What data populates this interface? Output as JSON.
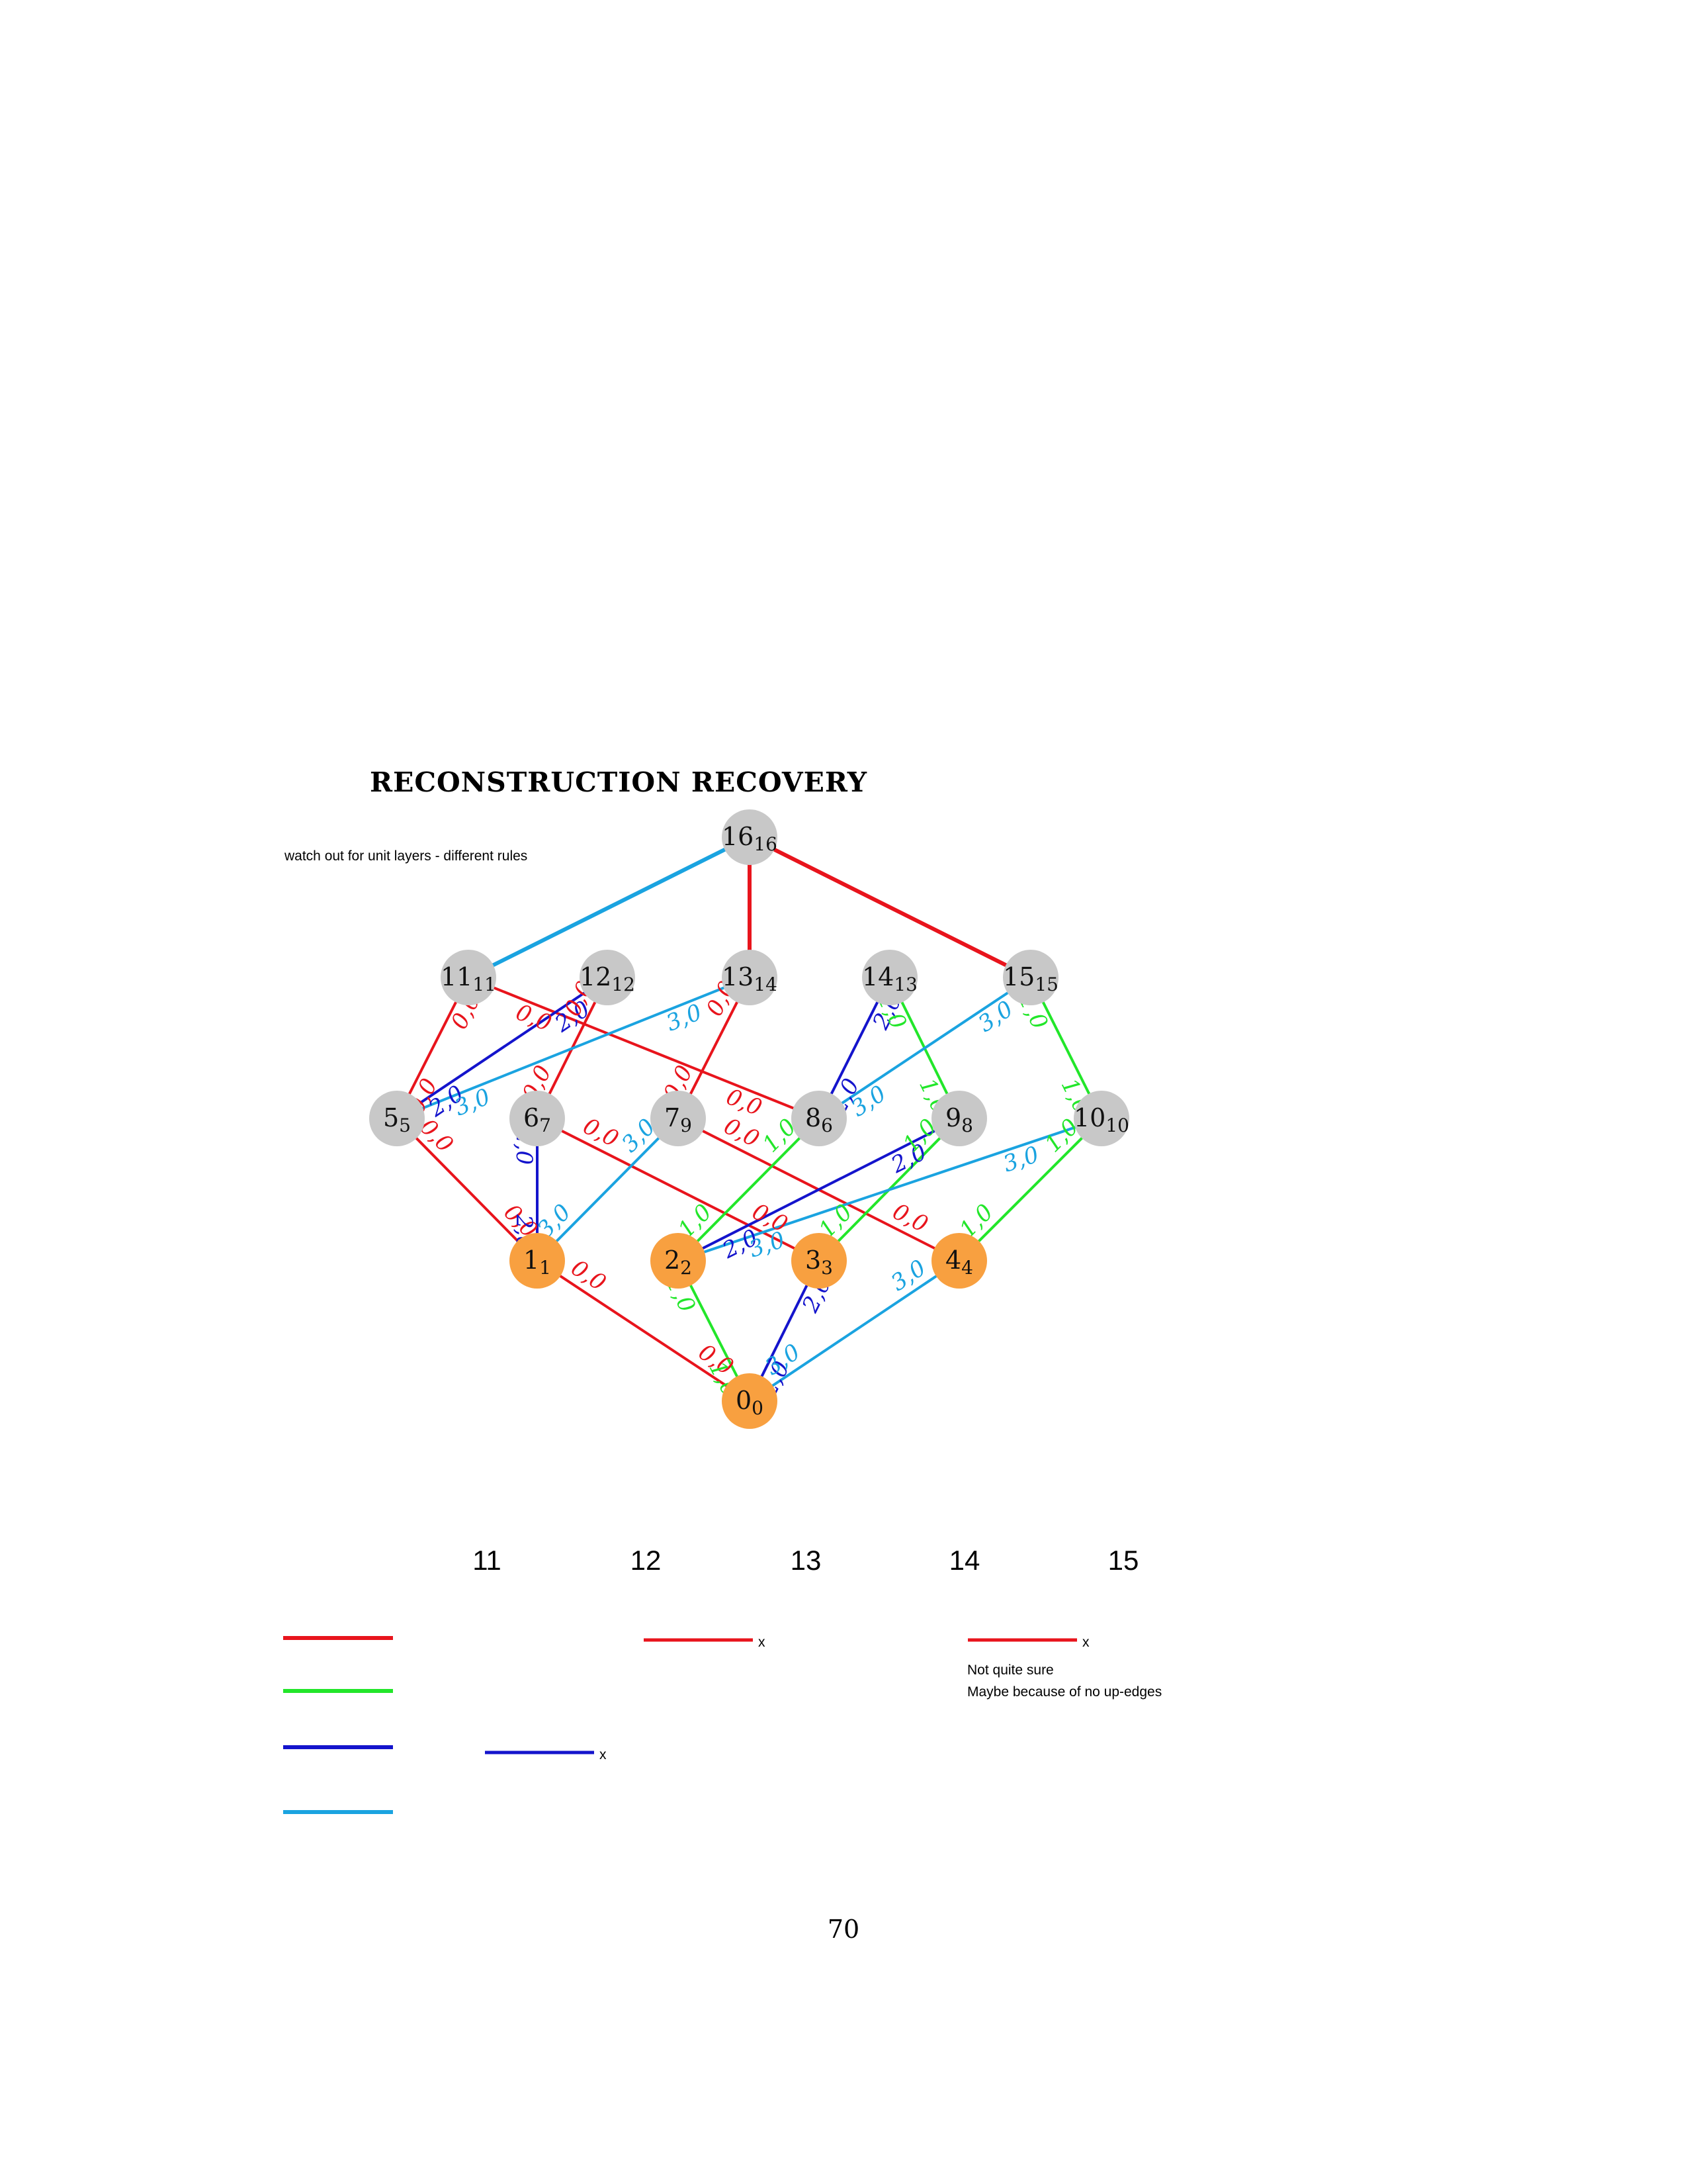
{
  "title": "RECONSTRUCTION RECOVERY",
  "note": "watch out for unit layers - different rules",
  "page_number": "70",
  "colors": {
    "red": "#e8141c",
    "green": "#22e62a",
    "blue": "#1414cc",
    "cyan": "#1aa3e0",
    "node_gray": "#c8c8c8",
    "node_orange": "#f8a040"
  },
  "nodes": [
    {
      "id": "16",
      "label": "16",
      "sub": "16",
      "kind": "gray"
    },
    {
      "id": "11",
      "label": "11",
      "sub": "11",
      "kind": "gray"
    },
    {
      "id": "12",
      "label": "12",
      "sub": "12",
      "kind": "gray"
    },
    {
      "id": "13",
      "label": "13",
      "sub": "14",
      "kind": "gray"
    },
    {
      "id": "14",
      "label": "14",
      "sub": "13",
      "kind": "gray"
    },
    {
      "id": "15",
      "label": "15",
      "sub": "15",
      "kind": "gray"
    },
    {
      "id": "5",
      "label": "5",
      "sub": "5",
      "kind": "gray"
    },
    {
      "id": "6",
      "label": "6",
      "sub": "7",
      "kind": "gray"
    },
    {
      "id": "7",
      "label": "7",
      "sub": "9",
      "kind": "gray"
    },
    {
      "id": "8",
      "label": "8",
      "sub": "6",
      "kind": "gray"
    },
    {
      "id": "9",
      "label": "9",
      "sub": "8",
      "kind": "gray"
    },
    {
      "id": "10",
      "label": "10",
      "sub": "10",
      "kind": "gray"
    },
    {
      "id": "1",
      "label": "1",
      "sub": "1",
      "kind": "orange"
    },
    {
      "id": "2",
      "label": "2",
      "sub": "2",
      "kind": "orange"
    },
    {
      "id": "3",
      "label": "3",
      "sub": "3",
      "kind": "orange"
    },
    {
      "id": "4",
      "label": "4",
      "sub": "4",
      "kind": "orange"
    },
    {
      "id": "0",
      "label": "0",
      "sub": "0",
      "kind": "orange"
    }
  ],
  "edges": [
    {
      "from": "16",
      "to": "11",
      "color": "cyan",
      "labels": []
    },
    {
      "from": "16",
      "to": "13",
      "color": "red",
      "labels": []
    },
    {
      "from": "16",
      "to": "15",
      "color": "red",
      "labels": []
    },
    {
      "from": "11",
      "to": "5",
      "color": "red",
      "labels": [
        "0,0",
        "0,0"
      ]
    },
    {
      "from": "11",
      "to": "8",
      "color": "red",
      "labels": [
        "0,0",
        "0,0"
      ]
    },
    {
      "from": "12",
      "to": "5",
      "color": "blue",
      "labels": [
        "2,0",
        "2,0"
      ]
    },
    {
      "from": "12",
      "to": "6",
      "color": "red",
      "labels": [
        "0,0",
        "0,0"
      ]
    },
    {
      "from": "13",
      "to": "5",
      "color": "cyan",
      "labels": [
        "3,0",
        "3,0"
      ]
    },
    {
      "from": "13",
      "to": "7",
      "color": "red",
      "labels": [
        "0,0",
        "0,0"
      ]
    },
    {
      "from": "14",
      "to": "8",
      "color": "blue",
      "labels": [
        "2,0",
        "2,0"
      ]
    },
    {
      "from": "14",
      "to": "9",
      "color": "green",
      "labels": [
        "1,0",
        "1,0"
      ]
    },
    {
      "from": "15",
      "to": "8",
      "color": "cyan",
      "labels": [
        "3,0",
        "3,0"
      ]
    },
    {
      "from": "15",
      "to": "10",
      "color": "green",
      "labels": [
        "1,0",
        "1,0"
      ]
    },
    {
      "from": "5",
      "to": "1",
      "color": "red",
      "labels": [
        "0,0",
        "0,0"
      ]
    },
    {
      "from": "6",
      "to": "1",
      "color": "blue",
      "labels": [
        "2,0",
        "2,0"
      ]
    },
    {
      "from": "6",
      "to": "3",
      "color": "red",
      "labels": [
        "0,0",
        "0,0"
      ]
    },
    {
      "from": "7",
      "to": "1",
      "color": "cyan",
      "labels": [
        "3,0",
        "3,0"
      ]
    },
    {
      "from": "7",
      "to": "4",
      "color": "red",
      "labels": [
        "0,0",
        "0,0"
      ]
    },
    {
      "from": "8",
      "to": "2",
      "color": "green",
      "labels": [
        "1,0",
        "1,0"
      ]
    },
    {
      "from": "9",
      "to": "2",
      "color": "blue",
      "labels": [
        "2,0",
        "2,0"
      ]
    },
    {
      "from": "9",
      "to": "3",
      "color": "green",
      "labels": [
        "1,0",
        "1,0"
      ]
    },
    {
      "from": "10",
      "to": "2",
      "color": "cyan",
      "labels": [
        "3,0",
        "3,0"
      ]
    },
    {
      "from": "10",
      "to": "4",
      "color": "green",
      "labels": [
        "1,0",
        "1,0"
      ]
    },
    {
      "from": "1",
      "to": "0",
      "color": "red",
      "labels": [
        "0,0",
        "0,0"
      ]
    },
    {
      "from": "2",
      "to": "0",
      "color": "green",
      "labels": [
        "1,0",
        "1,0"
      ]
    },
    {
      "from": "3",
      "to": "0",
      "color": "blue",
      "labels": [
        "2,0",
        "2,0"
      ]
    },
    {
      "from": "4",
      "to": "0",
      "color": "cyan",
      "labels": [
        "3,0",
        "3,0"
      ]
    }
  ],
  "column_headers": [
    "11",
    "12",
    "13",
    "14",
    "15"
  ],
  "legend": [
    "red",
    "green",
    "blue",
    "cyan"
  ],
  "marks": [
    {
      "color": "red",
      "text": "x"
    },
    {
      "color": "red",
      "text": "x"
    },
    {
      "color": "blue",
      "text": "x"
    }
  ],
  "comment_lines": [
    "Not quite sure",
    "Maybe because of no up-edges"
  ]
}
